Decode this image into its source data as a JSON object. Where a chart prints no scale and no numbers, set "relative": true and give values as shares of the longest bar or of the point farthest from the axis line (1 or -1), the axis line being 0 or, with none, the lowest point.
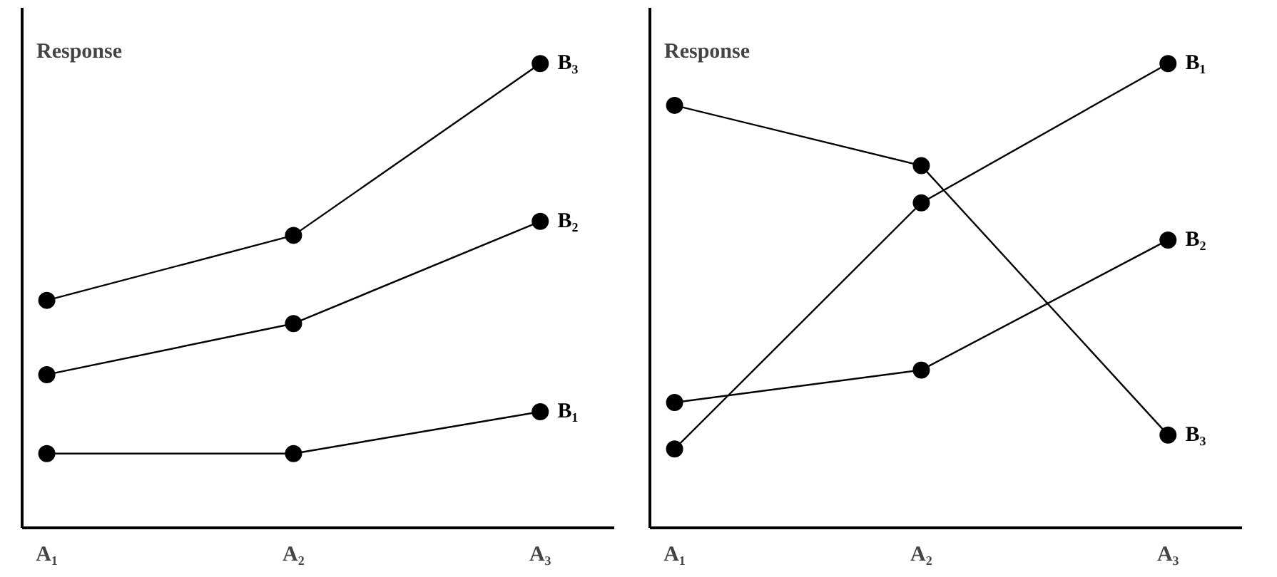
{
  "chart_data": [
    {
      "type": "line",
      "ylabel": "Response",
      "relative": true,
      "marker": "circle",
      "grid": false,
      "categories": [
        "A₁",
        "A₂",
        "A₃"
      ],
      "series": [
        {
          "name": "B₁",
          "color": "#000000",
          "values": [
            0.16,
            0.16,
            0.25
          ]
        },
        {
          "name": "B₂",
          "color": "#000000",
          "values": [
            0.33,
            0.44,
            0.66
          ]
        },
        {
          "name": "B₃",
          "color": "#000000",
          "values": [
            0.49,
            0.63,
            1
          ]
        }
      ]
    },
    {
      "type": "line",
      "ylabel": "Response",
      "relative": true,
      "marker": "circle",
      "grid": false,
      "categories": [
        "A₁",
        "A₂",
        "A₃"
      ],
      "series": [
        {
          "name": "B₁",
          "color": "#000000",
          "values": [
            0.17,
            0.7,
            1
          ]
        },
        {
          "name": "B₂",
          "color": "#000000",
          "values": [
            0.27,
            0.34,
            0.62
          ]
        },
        {
          "name": "B₃",
          "color": "#000000",
          "values": [
            0.91,
            0.78,
            0.2
          ]
        }
      ]
    }
  ]
}
